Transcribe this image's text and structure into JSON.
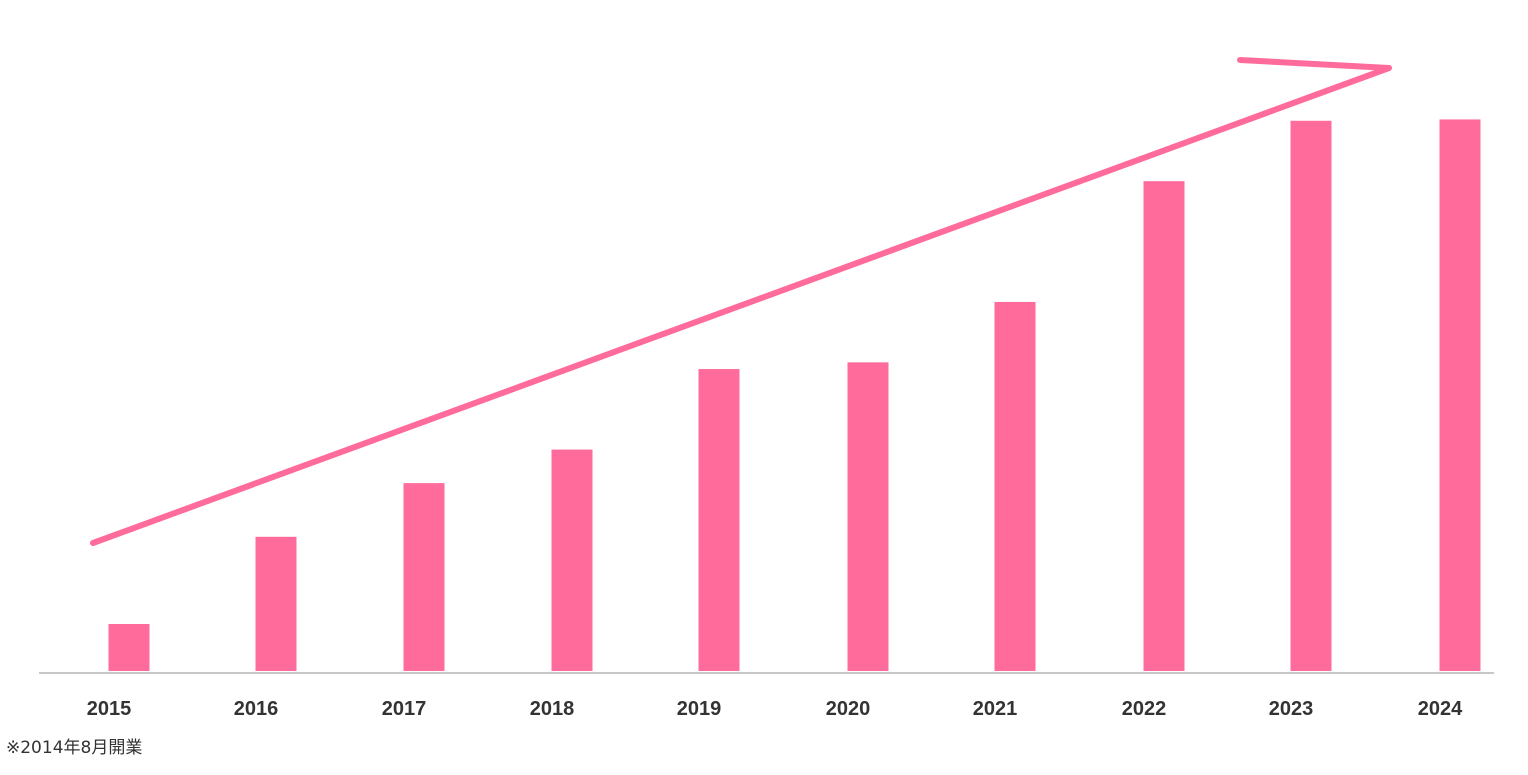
{
  "chart_data": {
    "type": "bar",
    "categories": [
      "2015",
      "2016",
      "2017",
      "2018",
      "2019",
      "2020",
      "2021",
      "2022",
      "2023",
      "2024"
    ],
    "values": [
      7,
      20,
      28,
      33,
      45,
      46,
      55,
      73,
      82,
      82.2
    ],
    "ylim": [
      0,
      100
    ],
    "title": "",
    "xlabel": "",
    "ylabel": "",
    "grid": false,
    "legend": "none",
    "annotations": [
      {
        "type": "trend-arrow",
        "direction": "up-right"
      }
    ]
  },
  "footnote": "※2014年8月開業",
  "colors": {
    "bar": "#ff6b9b",
    "arrow": "#ff6b9b",
    "axis": "#c8c8c8",
    "text": "#333333",
    "background": "#ffffff"
  }
}
